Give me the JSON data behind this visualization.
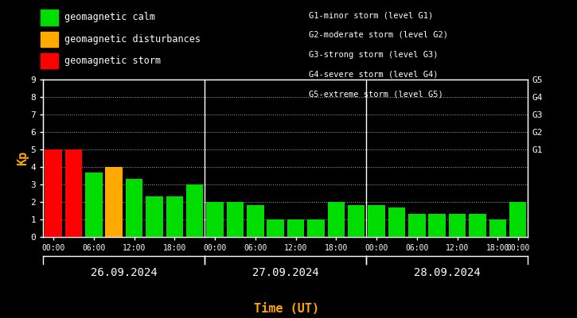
{
  "bg": "#000000",
  "text_color": "#ffffff",
  "orange_color": "#ffa500",
  "green_color": "#00dd00",
  "red_color": "#ff0000",
  "yellow_color": "#ffaa00",
  "kp_values": [
    5.0,
    5.0,
    3.7,
    4.0,
    3.3,
    2.3,
    2.3,
    3.0,
    2.0,
    2.0,
    1.8,
    1.0,
    1.0,
    1.0,
    2.0,
    1.8,
    1.8,
    1.7,
    1.3,
    1.3,
    1.3,
    1.3,
    1.0,
    2.0
  ],
  "bar_colors": [
    "#ff0000",
    "#ff0000",
    "#00dd00",
    "#ffaa00",
    "#00dd00",
    "#00dd00",
    "#00dd00",
    "#00dd00",
    "#00dd00",
    "#00dd00",
    "#00dd00",
    "#00dd00",
    "#00dd00",
    "#00dd00",
    "#00dd00",
    "#00dd00",
    "#00dd00",
    "#00dd00",
    "#00dd00",
    "#00dd00",
    "#00dd00",
    "#00dd00",
    "#00dd00",
    "#00dd00"
  ],
  "legend_left": [
    {
      "label": "geomagnetic calm",
      "color": "#00dd00"
    },
    {
      "label": "geomagnetic disturbances",
      "color": "#ffaa00"
    },
    {
      "label": "geomagnetic storm",
      "color": "#ff0000"
    }
  ],
  "legend_right": [
    "G1-minor storm (level G1)",
    "G2-moderate storm (level G2)",
    "G3-strong storm (level G3)",
    "G4-severe storm (level G4)",
    "G5-extreme storm (level G5)"
  ],
  "right_ytick_labels": [
    "G1",
    "G2",
    "G3",
    "G4",
    "G5"
  ],
  "right_ytick_pos": [
    5,
    6,
    7,
    8,
    9
  ],
  "day_labels": [
    "26.09.2024",
    "27.09.2024",
    "28.09.2024"
  ],
  "xlabel": "Time (UT)",
  "ylabel": "Kp",
  "ylim": [
    0,
    9
  ],
  "yticks": [
    0,
    1,
    2,
    3,
    4,
    5,
    6,
    7,
    8,
    9
  ],
  "num_bars": 24,
  "day_dividers_after_bar": [
    7,
    15
  ]
}
